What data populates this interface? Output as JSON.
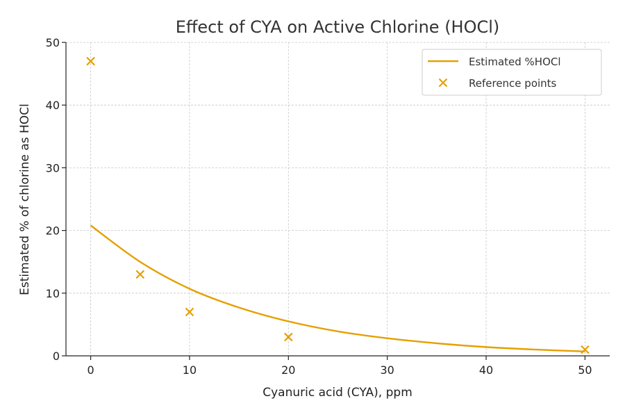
{
  "chart_data": {
    "type": "line",
    "title": "Effect of CYA on Active Chlorine (HOCl)",
    "xlabel": "Cyanuric acid (CYA), ppm",
    "ylabel": "Estimated % of chlorine as HOCl",
    "xlim": [
      -2.5,
      52.5
    ],
    "ylim": [
      0,
      50
    ],
    "xticks": [
      0,
      10,
      20,
      30,
      40,
      50
    ],
    "yticks": [
      0,
      10,
      20,
      30,
      40,
      50
    ],
    "grid": true,
    "legend_position": "top-right",
    "series": [
      {
        "name": "Estimated %HOCl",
        "kind": "line",
        "color": "#E69F00",
        "x": [
          0,
          5,
          10,
          15,
          20,
          25,
          30,
          35,
          40,
          45,
          50
        ],
        "y": [
          20.8,
          15.0,
          10.7,
          7.7,
          5.5,
          3.9,
          2.8,
          2.0,
          1.4,
          1.0,
          0.7
        ]
      },
      {
        "name": "Reference points",
        "kind": "scatter",
        "marker": "x",
        "color": "#E69F00",
        "x": [
          0,
          5,
          10,
          20,
          50
        ],
        "y": [
          47,
          13,
          7,
          3,
          1
        ]
      }
    ]
  }
}
